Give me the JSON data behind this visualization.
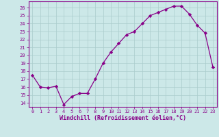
{
  "x": [
    0,
    1,
    2,
    3,
    4,
    5,
    6,
    7,
    8,
    9,
    10,
    11,
    12,
    13,
    14,
    15,
    16,
    17,
    18,
    19,
    20,
    21,
    22,
    23
  ],
  "y": [
    17.5,
    16.0,
    15.9,
    16.1,
    13.8,
    14.8,
    15.2,
    15.2,
    17.0,
    19.0,
    20.4,
    21.5,
    22.6,
    23.0,
    24.0,
    25.0,
    25.4,
    25.8,
    26.2,
    26.2,
    25.2,
    23.8,
    22.8,
    18.5
  ],
  "line_color": "#880088",
  "marker": "D",
  "marker_size": 2.2,
  "bg_color": "#cce8e8",
  "grid_color": "#aacccc",
  "xlabel": "Windchill (Refroidissement éolien,°C)",
  "tick_color": "#880088",
  "xlim": [
    -0.5,
    23.5
  ],
  "ylim": [
    13.5,
    26.8
  ],
  "yticks": [
    14,
    15,
    16,
    17,
    18,
    19,
    20,
    21,
    22,
    23,
    24,
    25,
    26
  ],
  "xtick_labels": [
    "0",
    "1",
    "2",
    "3",
    "4",
    "5",
    "6",
    "7",
    "8",
    "9",
    "10",
    "11",
    "12",
    "13",
    "14",
    "15",
    "16",
    "17",
    "18",
    "19",
    "20",
    "21",
    "22",
    "23"
  ],
  "spine_color": "#880088",
  "tick_fontsize": 5.0,
  "xlabel_fontsize": 6.0
}
